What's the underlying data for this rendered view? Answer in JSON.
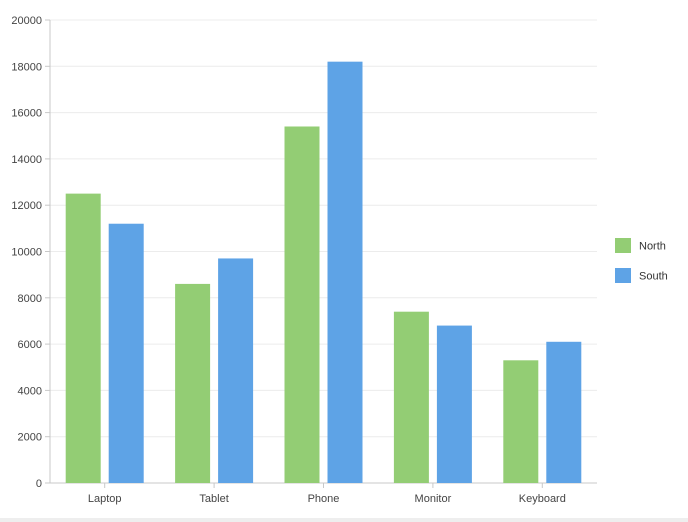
{
  "chart_data": {
    "type": "bar",
    "categories": [
      "Laptop",
      "Tablet",
      "Phone",
      "Monitor",
      "Keyboard"
    ],
    "series": [
      {
        "name": "North",
        "values": [
          12500,
          8600,
          15400,
          7400,
          5300
        ],
        "color": "#93cd74"
      },
      {
        "name": "South",
        "values": [
          11200,
          9700,
          18200,
          6800,
          6100
        ],
        "color": "#5ea3e6"
      }
    ],
    "ylim": [
      0,
      20000
    ],
    "yticks": [
      "0",
      "2000",
      "4000",
      "6000",
      "8000",
      "10000",
      "12000",
      "14000",
      "16000",
      "18000",
      "20000"
    ],
    "grid": true,
    "legend": "right"
  }
}
